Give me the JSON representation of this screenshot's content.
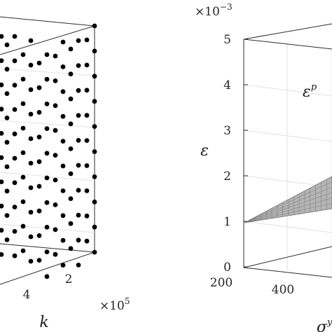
{
  "chart_data": [
    {
      "type": "scatter",
      "panel": "left",
      "xlabel": "k",
      "x_multiplier": "×10",
      "x_multiplier_exponent": "5",
      "x_ticks": [
        "4",
        "2"
      ],
      "point_color": "#000000"
    },
    {
      "type": "surface",
      "panel": "right",
      "zlabel": "ε",
      "z_multiplier": "×10",
      "z_multiplier_exponent": "−3",
      "z_ticks": [
        "0",
        "1",
        "2",
        "3",
        "4",
        "5"
      ],
      "zlim": [
        0,
        5
      ],
      "x_ticks": [
        "200",
        "400"
      ],
      "xlabel_base": "σ",
      "xlabel_sup": "y",
      "surface_label_base": "ε",
      "surface_label_sup": "p",
      "surface_color": "#b5b5b5"
    }
  ]
}
